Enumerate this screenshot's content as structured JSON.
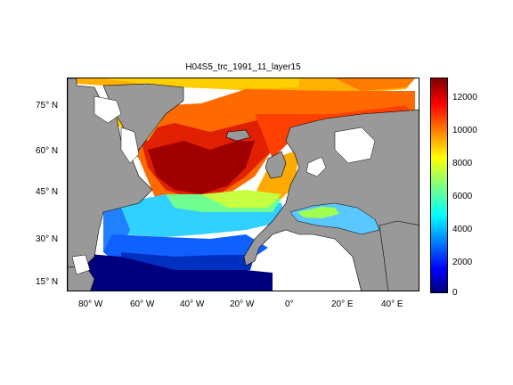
{
  "title": "H04S5_trc_1991_11_layer15",
  "lat_ticks": [
    {
      "label": "75° N",
      "value": 75
    },
    {
      "label": "60° N",
      "value": 60
    },
    {
      "label": "45° N",
      "value": 45
    },
    {
      "label": "30° N",
      "value": 30
    },
    {
      "label": "15° N",
      "value": 15
    }
  ],
  "lon_ticks": [
    {
      "label": "80° W",
      "value": -80
    },
    {
      "label": "60° W",
      "value": -60
    },
    {
      "label": "40° W",
      "value": -40
    },
    {
      "label": "20° W",
      "value": -20
    },
    {
      "label": "0°",
      "value": 0
    },
    {
      "label": "20° E",
      "value": 20
    },
    {
      "label": "40° E",
      "value": 40
    }
  ],
  "colorbar": {
    "min": 0,
    "max": 13000,
    "ticks": [
      "12000",
      "10000",
      "8000",
      "6000",
      "4000",
      "2000",
      "0"
    ],
    "colormap": "jet"
  },
  "colors": {
    "land": "#999999",
    "frame": "#000000"
  }
}
